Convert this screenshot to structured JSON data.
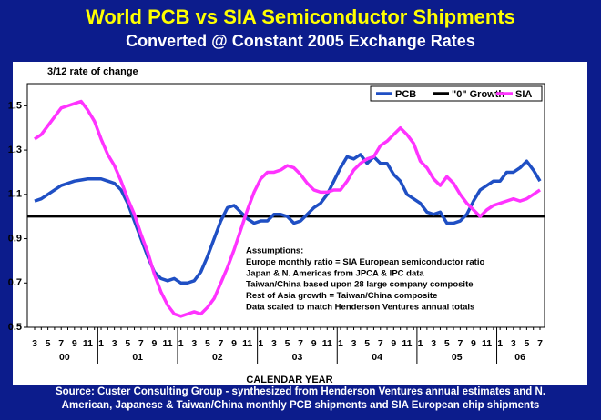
{
  "chart_data": {
    "type": "line",
    "title": "World PCB vs SIA Semiconductor Shipments",
    "subtitle": "Converted @ Constant 2005 Exchange Rates",
    "y_label": "3/12 rate of change",
    "x_label": "CALENDAR YEAR",
    "source": [
      "Source: Custer Consulting Group - synthesized from Henderson Ventures annual estimates and N.",
      "American, Japanese & Taiwan/China monthly PCB shipments and SIA European chip shipments"
    ],
    "categories": [
      "3",
      null,
      "5",
      null,
      "7",
      null,
      "9",
      null,
      "11",
      null,
      "1",
      null,
      "3",
      null,
      "5",
      null,
      "7",
      null,
      "9",
      null,
      "11",
      null,
      "1",
      null,
      "3",
      null,
      "5",
      null,
      "7",
      null,
      "9",
      null,
      "11",
      null,
      "1",
      null,
      "3",
      null,
      "5",
      null,
      "7",
      null,
      "9",
      null,
      "11",
      null,
      "1",
      null,
      "3",
      null,
      "5",
      null,
      "7",
      null,
      "9",
      null,
      "11",
      null,
      "1",
      null,
      "3",
      null,
      "5",
      null,
      "7",
      null,
      "9",
      null,
      "11",
      null,
      "1",
      null,
      "3",
      null,
      "5",
      null,
      "7"
    ],
    "x_groups": [
      "00",
      "01",
      "02",
      "03",
      "04",
      "05",
      "06"
    ],
    "series": [
      {
        "name": "PCB",
        "color": "#1f4fc4",
        "values": [
          1.07,
          1.08,
          1.1,
          1.12,
          1.14,
          1.15,
          1.16,
          1.165,
          1.17,
          1.17,
          1.17,
          1.16,
          1.15,
          1.12,
          1.06,
          0.98,
          0.9,
          0.82,
          0.75,
          0.72,
          0.71,
          0.72,
          0.7,
          0.7,
          0.71,
          0.75,
          0.82,
          0.9,
          0.98,
          1.04,
          1.05,
          1.02,
          0.99,
          0.97,
          0.98,
          0.98,
          1.01,
          1.01,
          1.0,
          0.97,
          0.98,
          1.01,
          1.04,
          1.06,
          1.1,
          1.16,
          1.22,
          1.27,
          1.26,
          1.28,
          1.24,
          1.27,
          1.24,
          1.24,
          1.19,
          1.16,
          1.1,
          1.08,
          1.06,
          1.02,
          1.01,
          1.02,
          0.97,
          0.97,
          0.98,
          1.01,
          1.07,
          1.12,
          1.14,
          1.16,
          1.16,
          1.2,
          1.2,
          1.22,
          1.25,
          1.21,
          1.16
        ]
      },
      {
        "name": "SIA",
        "color": "#ff33ff",
        "values": [
          1.35,
          1.37,
          1.41,
          1.45,
          1.49,
          1.5,
          1.51,
          1.52,
          1.48,
          1.43,
          1.35,
          1.28,
          1.23,
          1.16,
          1.08,
          1.01,
          0.92,
          0.84,
          0.74,
          0.66,
          0.6,
          0.56,
          0.55,
          0.56,
          0.57,
          0.56,
          0.59,
          0.63,
          0.7,
          0.77,
          0.85,
          0.94,
          1.03,
          1.11,
          1.17,
          1.2,
          1.2,
          1.21,
          1.23,
          1.22,
          1.19,
          1.15,
          1.12,
          1.11,
          1.11,
          1.12,
          1.12,
          1.16,
          1.21,
          1.24,
          1.26,
          1.27,
          1.32,
          1.34,
          1.37,
          1.4,
          1.37,
          1.33,
          1.25,
          1.22,
          1.17,
          1.14,
          1.18,
          1.15,
          1.1,
          1.06,
          1.03,
          1.0,
          1.03,
          1.05,
          1.06,
          1.07,
          1.08,
          1.07,
          1.08,
          1.1,
          1.12
        ]
      }
    ],
    "reference_line": {
      "name": "\"0\" Growth",
      "value": 1.0,
      "color": "#000000"
    },
    "legend_order": [
      "PCB",
      "\"0\" Growth",
      "SIA"
    ],
    "ylim": [
      0.5,
      1.6
    ],
    "yticks": [
      0.5,
      0.7,
      0.9,
      1.1,
      1.3,
      1.5
    ],
    "annotations": [
      "Assumptions:",
      "Europe monthly ratio = SIA European semiconductor ratio",
      "Japan & N. Americas from JPCA & IPC data",
      "Taiwan/China based upon 28 large company composite",
      "Rest of Asia growth = Taiwan/China composite",
      "Data scaled to match Henderson Ventures annual totals"
    ]
  }
}
